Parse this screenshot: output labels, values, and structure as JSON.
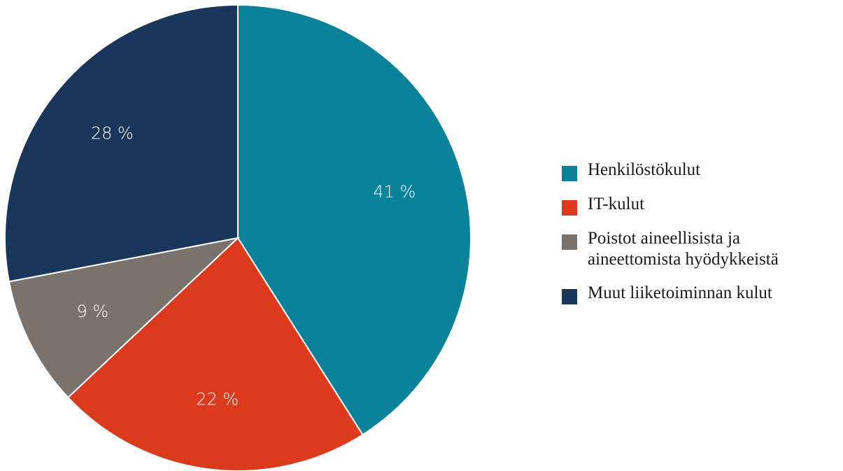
{
  "chart_data": {
    "type": "pie",
    "categories": [
      "Henkilöstökulut",
      "IT-kulut",
      "Poistot aineellisista ja\naineettomista hyödykkeistä",
      "Muut liiketoiminnan kulut"
    ],
    "values": [
      41,
      22,
      9,
      28
    ],
    "value_labels": [
      "41 %",
      "22 %",
      "9 %",
      "28 %"
    ],
    "colors": [
      "#0a8299",
      "#dc3a1c",
      "#7a736d",
      "#1a365a"
    ],
    "legend": "right"
  }
}
